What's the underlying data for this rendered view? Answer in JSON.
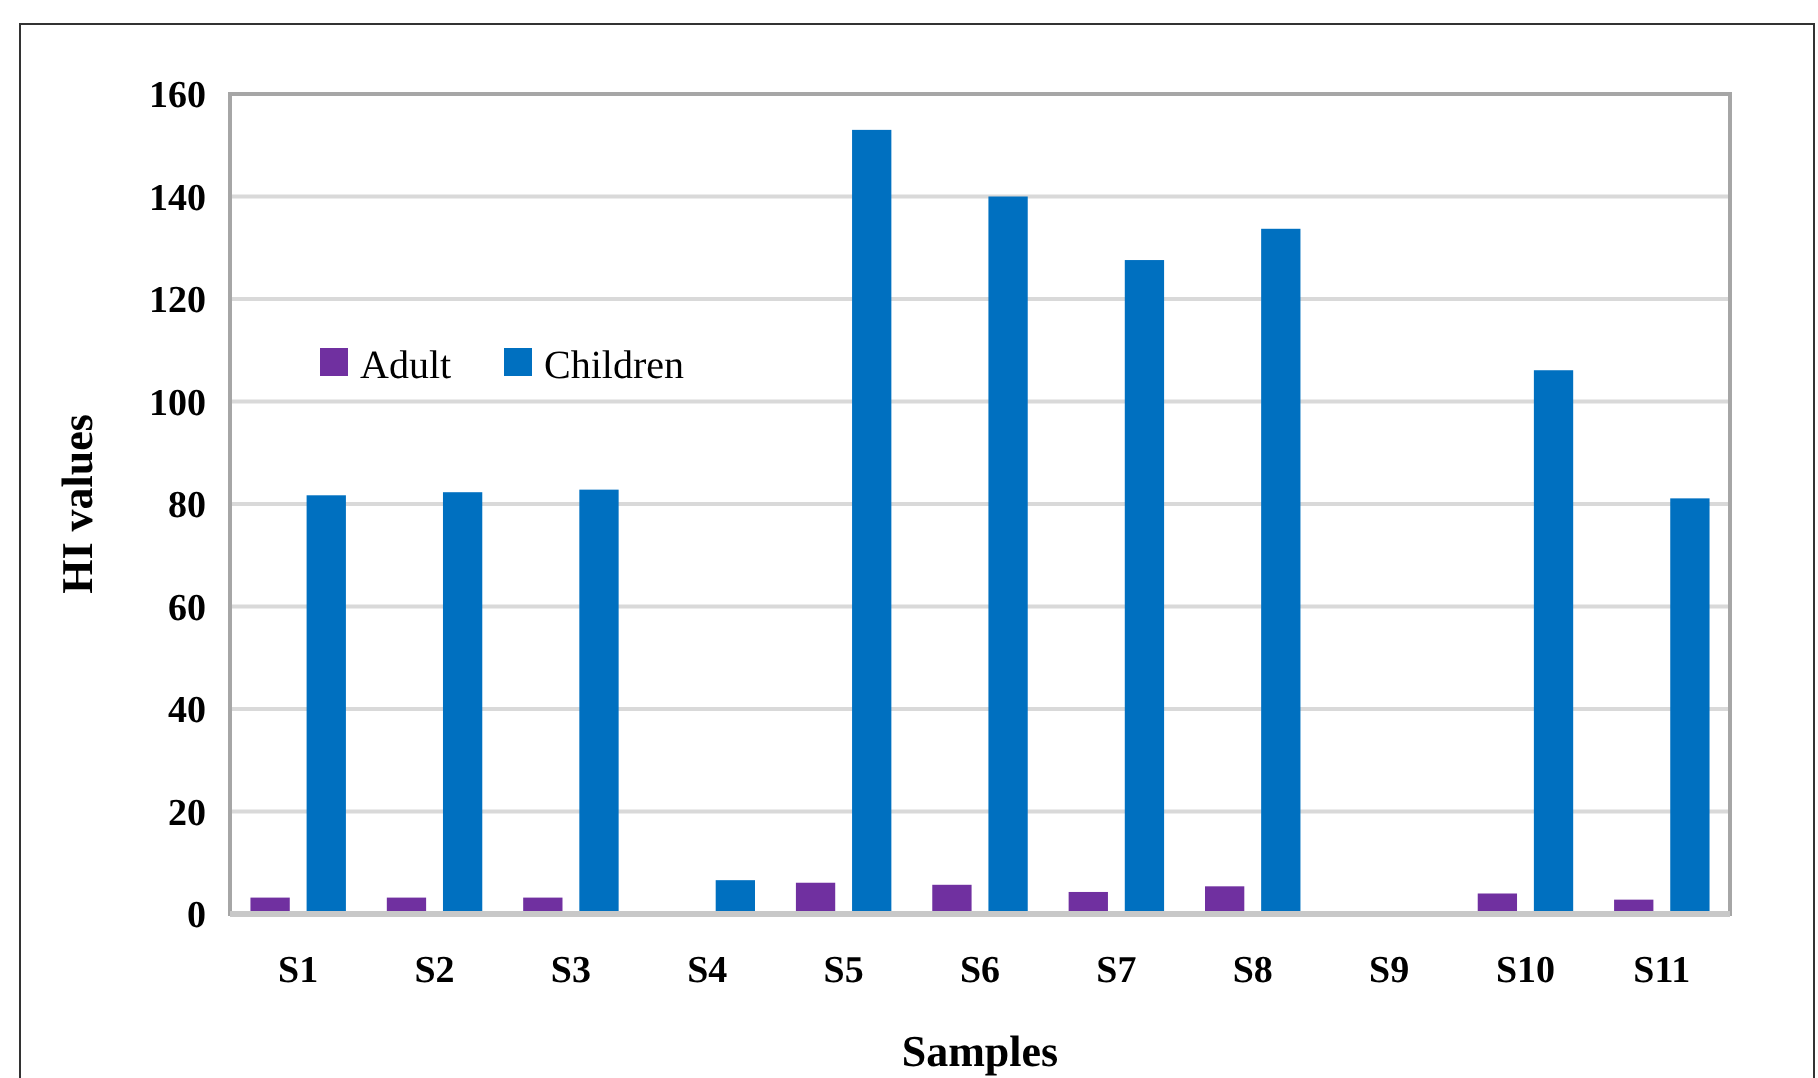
{
  "chart_data": {
    "type": "bar",
    "xlabel": "Samples",
    "ylabel": "HI values",
    "categories": [
      "S1",
      "S2",
      "S3",
      "S4",
      "S5",
      "S6",
      "S7",
      "S8",
      "S9",
      "S10",
      "S11"
    ],
    "series": [
      {
        "name": "Adult",
        "color": "#7030a0",
        "values": [
          3.2,
          3.2,
          3.2,
          null,
          6.1,
          5.7,
          4.3,
          5.4,
          null,
          4.0,
          2.8
        ]
      },
      {
        "name": "Children",
        "color": "#0070c0",
        "values": [
          81.7,
          82.3,
          82.8,
          6.6,
          153,
          140,
          127.6,
          133.7,
          null,
          106.1,
          81.1
        ]
      }
    ],
    "ylim": [
      0,
      160
    ],
    "yticks": [
      0,
      20,
      40,
      60,
      80,
      100,
      120,
      140,
      160
    ],
    "grid": "y",
    "legend": "left"
  }
}
